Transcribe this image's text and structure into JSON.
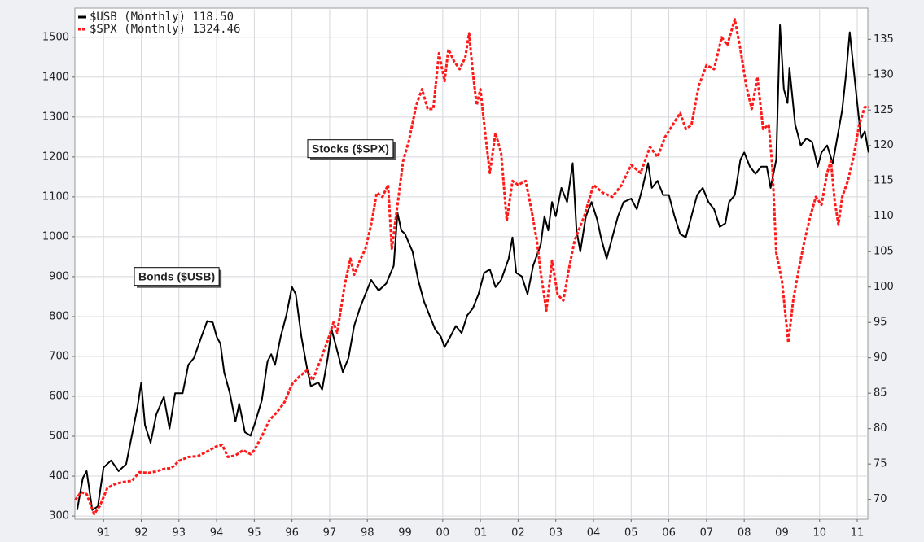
{
  "chart_data": {
    "type": "line",
    "annotations": [
      {
        "text": "Bonds ($USB)",
        "color": "#000000"
      },
      {
        "text": "Stocks ($SPX)",
        "color": "#ff0000"
      }
    ],
    "xlim": [
      1990.24,
      2011.28
    ],
    "xticks": [
      {
        "value": 1991,
        "label": "91"
      },
      {
        "value": 1992,
        "label": "92"
      },
      {
        "value": 1993,
        "label": "93"
      },
      {
        "value": 1994,
        "label": "94"
      },
      {
        "value": 1995,
        "label": "95"
      },
      {
        "value": 1996,
        "label": "96"
      },
      {
        "value": 1997,
        "label": "97"
      },
      {
        "value": 1998,
        "label": "98"
      },
      {
        "value": 1999,
        "label": "99"
      },
      {
        "value": 2000,
        "label": "00"
      },
      {
        "value": 2001,
        "label": "01"
      },
      {
        "value": 2002,
        "label": "02"
      },
      {
        "value": 2003,
        "label": "03"
      },
      {
        "value": 2004,
        "label": "04"
      },
      {
        "value": 2005,
        "label": "05"
      },
      {
        "value": 2006,
        "label": "06"
      },
      {
        "value": 2007,
        "label": "07"
      },
      {
        "value": 2008,
        "label": "08"
      },
      {
        "value": 2009,
        "label": "09"
      },
      {
        "value": 2010,
        "label": "10"
      },
      {
        "value": 2011,
        "label": "11"
      }
    ],
    "ylim": [
      292,
      1573
    ],
    "yticks": [
      300,
      400,
      500,
      600,
      700,
      800,
      900,
      1000,
      1100,
      1200,
      1300,
      1400,
      1500
    ],
    "y2lim": [
      67.2,
      139.4
    ],
    "y2ticks": [
      70,
      75,
      80,
      85,
      90,
      95,
      100,
      105,
      110,
      115,
      120,
      125,
      130,
      135
    ],
    "grid": true,
    "series": [
      {
        "name": "$USB (Monthly) 118.50",
        "color": "#000000",
        "axis": "y2",
        "dashed": false,
        "x": [
          1990.3,
          1990.45,
          1990.55,
          1990.7,
          1990.85,
          1991.0,
          1991.2,
          1991.4,
          1991.6,
          1991.75,
          1991.9,
          1992.0,
          1992.1,
          1992.25,
          1992.4,
          1992.6,
          1992.75,
          1992.9,
          1993.1,
          1993.25,
          1993.4,
          1993.6,
          1993.75,
          1993.9,
          1994.0,
          1994.1,
          1994.2,
          1994.35,
          1994.5,
          1994.6,
          1994.75,
          1994.9,
          1995.0,
          1995.2,
          1995.35,
          1995.45,
          1995.55,
          1995.7,
          1995.85,
          1996.0,
          1996.1,
          1996.25,
          1996.4,
          1996.5,
          1996.7,
          1996.8,
          1996.95,
          1997.05,
          1997.2,
          1997.35,
          1997.5,
          1997.65,
          1997.8,
          1997.95,
          1998.1,
          1998.3,
          1998.5,
          1998.7,
          1998.8,
          1998.9,
          1999.0,
          1999.2,
          1999.35,
          1999.5,
          1999.65,
          1999.8,
          1999.95,
          2000.05,
          2000.2,
          2000.35,
          2000.5,
          2000.65,
          2000.8,
          2000.95,
          2001.1,
          2001.25,
          2001.4,
          2001.55,
          2001.75,
          2001.85,
          2001.95,
          2002.1,
          2002.25,
          2002.4,
          2002.6,
          2002.7,
          2002.8,
          2002.9,
          2003.0,
          2003.15,
          2003.3,
          2003.45,
          2003.55,
          2003.65,
          2003.8,
          2003.95,
          2004.1,
          2004.2,
          2004.35,
          2004.5,
          2004.65,
          2004.8,
          2005.0,
          2005.15,
          2005.3,
          2005.45,
          2005.55,
          2005.7,
          2005.85,
          2006.0,
          2006.15,
          2006.3,
          2006.45,
          2006.6,
          2006.75,
          2006.9,
          2007.05,
          2007.2,
          2007.35,
          2007.5,
          2007.6,
          2007.75,
          2007.9,
          2008.0,
          2008.15,
          2008.3,
          2008.45,
          2008.6,
          2008.7,
          2008.85,
          2008.95,
          2009.05,
          2009.15,
          2009.2,
          2009.35,
          2009.5,
          2009.65,
          2009.8,
          2009.95,
          2010.05,
          2010.2,
          2010.35,
          2010.5,
          2010.6,
          2010.7,
          2010.75,
          2010.8,
          2010.9,
          2011.0,
          2011.1,
          2011.2,
          2011.3
        ],
        "values": [
          68.5,
          73,
          74,
          68.5,
          69,
          74.5,
          75.5,
          74,
          75,
          79,
          83,
          86.5,
          80.5,
          78,
          82,
          84.5,
          80,
          85,
          85,
          89,
          90,
          93,
          95.2,
          95,
          93,
          92,
          88,
          85,
          81,
          83.5,
          79.5,
          79,
          80.5,
          84,
          89.5,
          90.5,
          89,
          93,
          96,
          100,
          99,
          93,
          88.5,
          86,
          86.5,
          85.5,
          90,
          94,
          91,
          88,
          90,
          94.5,
          97,
          99,
          101,
          99.5,
          100.5,
          103,
          110.5,
          108,
          107.5,
          105,
          101,
          98,
          96,
          94,
          93,
          91.5,
          93,
          94.5,
          93.5,
          96,
          97,
          99,
          102,
          102.5,
          100,
          101,
          104,
          107,
          102,
          101.5,
          99,
          103,
          106,
          110,
          108,
          112,
          110,
          114,
          112,
          117.5,
          108,
          105,
          110,
          112,
          109.5,
          107,
          104,
          107,
          110,
          112,
          112.5,
          111,
          114,
          117.5,
          114,
          115,
          113,
          113,
          110,
          107.5,
          107,
          110,
          113,
          114,
          112,
          111,
          108.5,
          109,
          112,
          113,
          118,
          119,
          117,
          116,
          117,
          117,
          114,
          118,
          137,
          128,
          126,
          131,
          123,
          120,
          121,
          120.5,
          117,
          119,
          120,
          117.5,
          122,
          125,
          130,
          133,
          136,
          131,
          126,
          121,
          122,
          119
        ]
      },
      {
        "name": "$SPX (Monthly) 1324.46",
        "color": "#ff1a1a",
        "axis": "y",
        "dashed": true,
        "x": [
          1990.25,
          1990.4,
          1990.55,
          1990.75,
          1990.9,
          1991.1,
          1991.3,
          1991.5,
          1991.75,
          1991.95,
          1992.2,
          1992.4,
          1992.6,
          1992.8,
          1993.0,
          1993.25,
          1993.5,
          1993.75,
          1994.0,
          1994.15,
          1994.3,
          1994.5,
          1994.7,
          1994.9,
          1995.0,
          1995.2,
          1995.4,
          1995.6,
          1995.8,
          1996.0,
          1996.2,
          1996.4,
          1996.55,
          1996.75,
          1996.95,
          1997.1,
          1997.2,
          1997.4,
          1997.55,
          1997.65,
          1997.8,
          1997.95,
          1998.1,
          1998.25,
          1998.4,
          1998.55,
          1998.65,
          1998.8,
          1998.95,
          1999.1,
          1999.3,
          1999.45,
          1999.6,
          1999.75,
          1999.9,
          2000.05,
          2000.15,
          2000.3,
          2000.45,
          2000.6,
          2000.7,
          2000.8,
          2000.9,
          2001.0,
          2001.15,
          2001.25,
          2001.4,
          2001.55,
          2001.7,
          2001.85,
          2002.0,
          2002.2,
          2002.35,
          2002.5,
          2002.6,
          2002.75,
          2002.9,
          2003.05,
          2003.2,
          2003.35,
          2003.5,
          2003.75,
          2004.0,
          2004.25,
          2004.5,
          2004.75,
          2005.0,
          2005.25,
          2005.5,
          2005.7,
          2005.9,
          2006.1,
          2006.3,
          2006.45,
          2006.6,
          2006.8,
          2007.0,
          2007.2,
          2007.4,
          2007.55,
          2007.75,
          2007.9,
          2008.05,
          2008.2,
          2008.35,
          2008.5,
          2008.65,
          2008.75,
          2008.85,
          2009.0,
          2009.17,
          2009.3,
          2009.45,
          2009.6,
          2009.75,
          2009.9,
          2010.05,
          2010.2,
          2010.3,
          2010.4,
          2010.5,
          2010.6,
          2010.75,
          2010.9,
          2011.05,
          2011.2,
          2011.3
        ],
        "values": [
          340,
          360,
          355,
          305,
          325,
          370,
          380,
          385,
          388,
          410,
          408,
          412,
          418,
          420,
          438,
          448,
          450,
          462,
          475,
          478,
          448,
          452,
          465,
          455,
          465,
          500,
          540,
          560,
          585,
          630,
          650,
          665,
          640,
          690,
          740,
          785,
          760,
          880,
          945,
          905,
          940,
          970,
          1030,
          1110,
          1100,
          1130,
          970,
          1080,
          1190,
          1240,
          1330,
          1370,
          1320,
          1320,
          1460,
          1390,
          1470,
          1440,
          1420,
          1450,
          1510,
          1410,
          1330,
          1370,
          1240,
          1160,
          1260,
          1210,
          1040,
          1140,
          1130,
          1140,
          1070,
          990,
          910,
          815,
          940,
          855,
          840,
          920,
          990,
          1050,
          1130,
          1110,
          1100,
          1130,
          1180,
          1160,
          1225,
          1200,
          1250,
          1280,
          1310,
          1270,
          1280,
          1380,
          1430,
          1420,
          1500,
          1480,
          1545,
          1470,
          1380,
          1320,
          1400,
          1270,
          1280,
          1170,
          960,
          890,
          735,
          840,
          920,
          990,
          1050,
          1100,
          1080,
          1160,
          1190,
          1090,
          1030,
          1100,
          1140,
          1200,
          1280,
          1325,
          1325
        ]
      }
    ]
  }
}
